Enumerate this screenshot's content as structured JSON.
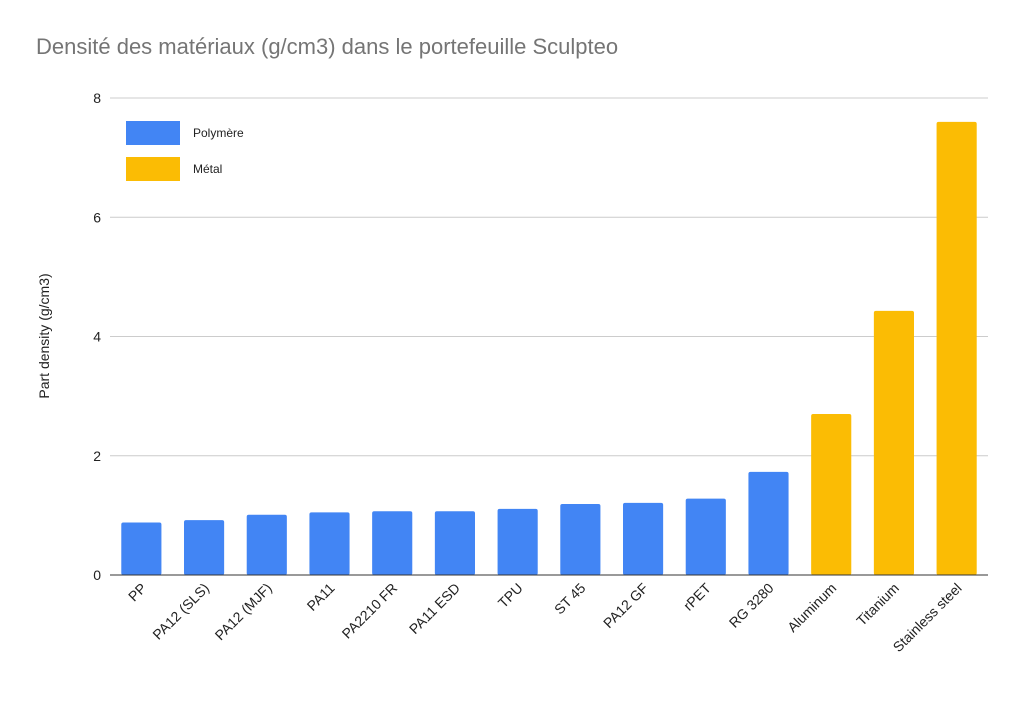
{
  "chart_data": {
    "type": "bar",
    "title": "Densité des matériaux (g/cm3) dans le portefeuille Sculpteo",
    "ylabel": "Part density (g/cm3)",
    "xlabel": "",
    "ylim": [
      0,
      8
    ],
    "yticks": [
      0,
      2,
      4,
      6,
      8
    ],
    "grid": true,
    "legend_position": "top-left",
    "categories": [
      "PP",
      "PA12 (SLS)",
      "PA12 (MJF)",
      "PA11",
      "PA2210 FR",
      "PA11 ESD",
      "TPU",
      "ST 45",
      "PA12 GF",
      "rPET",
      "RG 3280",
      "Aluminum",
      "Titanium",
      "Stainless steel"
    ],
    "values": [
      0.88,
      0.92,
      1.01,
      1.05,
      1.07,
      1.07,
      1.11,
      1.19,
      1.21,
      1.28,
      1.73,
      2.7,
      4.43,
      7.6
    ],
    "groups": [
      "Polymère",
      "Polymère",
      "Polymère",
      "Polymère",
      "Polymère",
      "Polymère",
      "Polymère",
      "Polymère",
      "Polymère",
      "Polymère",
      "Polymère",
      "Métal",
      "Métal",
      "Métal"
    ],
    "legend": [
      {
        "name": "Polymère",
        "color": "#4285f4"
      },
      {
        "name": "Métal",
        "color": "#fbbc04"
      }
    ]
  }
}
